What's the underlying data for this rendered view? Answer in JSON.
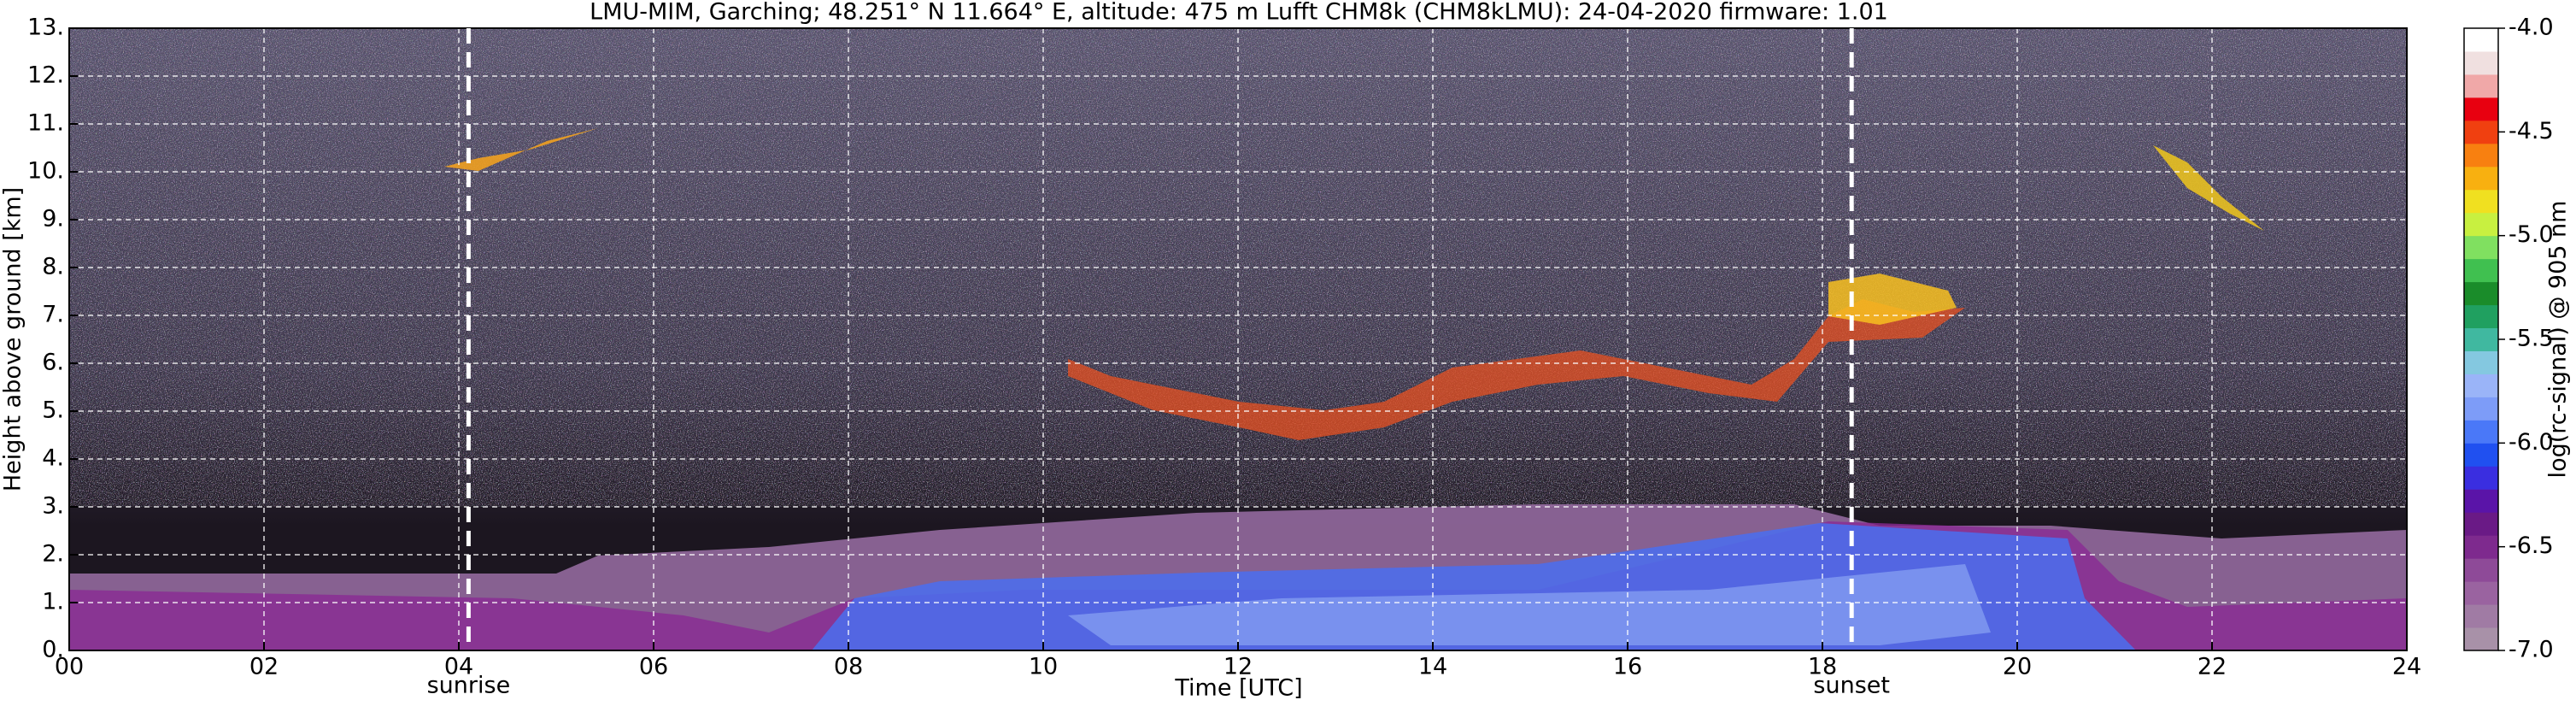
{
  "chart_data": {
    "type": "heatmap",
    "title": "LMU-MIM, Garching; 48.251° N 11.664° E, altitude: 475 m    Lufft CHM8k (CHM8kLMU): 24-04-2020    firmware: 1.01",
    "x_label": "Time [UTC]",
    "y_label": "Height above ground [km]",
    "colorbar_label": "log(rc-signal) @ 905 nm",
    "xlim": [
      0,
      24
    ],
    "xticks": [
      {
        "value": 0,
        "label": "00"
      },
      {
        "value": 2,
        "label": "02"
      },
      {
        "value": 4,
        "label": "04"
      },
      {
        "value": 6,
        "label": "06"
      },
      {
        "value": 8,
        "label": "08"
      },
      10,
      12,
      14,
      16,
      18,
      20,
      22,
      24
    ],
    "ylim": [
      0,
      13
    ],
    "yticks": [
      {
        "value": 0,
        "label": "0."
      },
      {
        "value": 1,
        "label": "1."
      },
      {
        "value": 2,
        "label": "2."
      },
      {
        "value": 3,
        "label": "3."
      },
      {
        "value": 4,
        "label": "4."
      },
      {
        "value": 5,
        "label": "5."
      },
      {
        "value": 6,
        "label": "6."
      },
      {
        "value": 7,
        "label": "7."
      },
      {
        "value": 8,
        "label": "8."
      },
      {
        "value": 9,
        "label": "9."
      },
      {
        "value": 10,
        "label": "10."
      },
      {
        "value": 11,
        "label": "11."
      },
      {
        "value": 12,
        "label": "12."
      },
      {
        "value": 13,
        "label": "13."
      }
    ],
    "clim": [
      -7,
      -4
    ],
    "cticks": [
      {
        "value": -7,
        "label": "-7.0"
      },
      -6.5,
      {
        "value": -6,
        "label": "-6.0"
      },
      -5.5,
      {
        "value": -5,
        "label": "-5.0"
      },
      -4.5,
      {
        "value": -4,
        "label": "-4.0"
      }
    ],
    "colormap": [
      "#a891a8",
      "#a07ba4",
      "#9a63a0",
      "#8e4a98",
      "#7e2a8e",
      "#6a1a86",
      "#5a14a8",
      "#3a2ee0",
      "#2050f0",
      "#4a78f8",
      "#7d9cf8",
      "#9ab4f8",
      "#84c8e0",
      "#40b8a0",
      "#20a060",
      "#1a8c2a",
      "#40c050",
      "#80e060",
      "#c8f040",
      "#f0e020",
      "#f8b010",
      "#f88010",
      "#f04010",
      "#e80010",
      "#f0a8a8",
      "#f0e0e0",
      "#ffffff"
    ],
    "grid": true,
    "annotations": [
      {
        "x": 4.1,
        "label": "sunrise"
      },
      {
        "x": 18.3,
        "label": "sunset"
      }
    ]
  }
}
